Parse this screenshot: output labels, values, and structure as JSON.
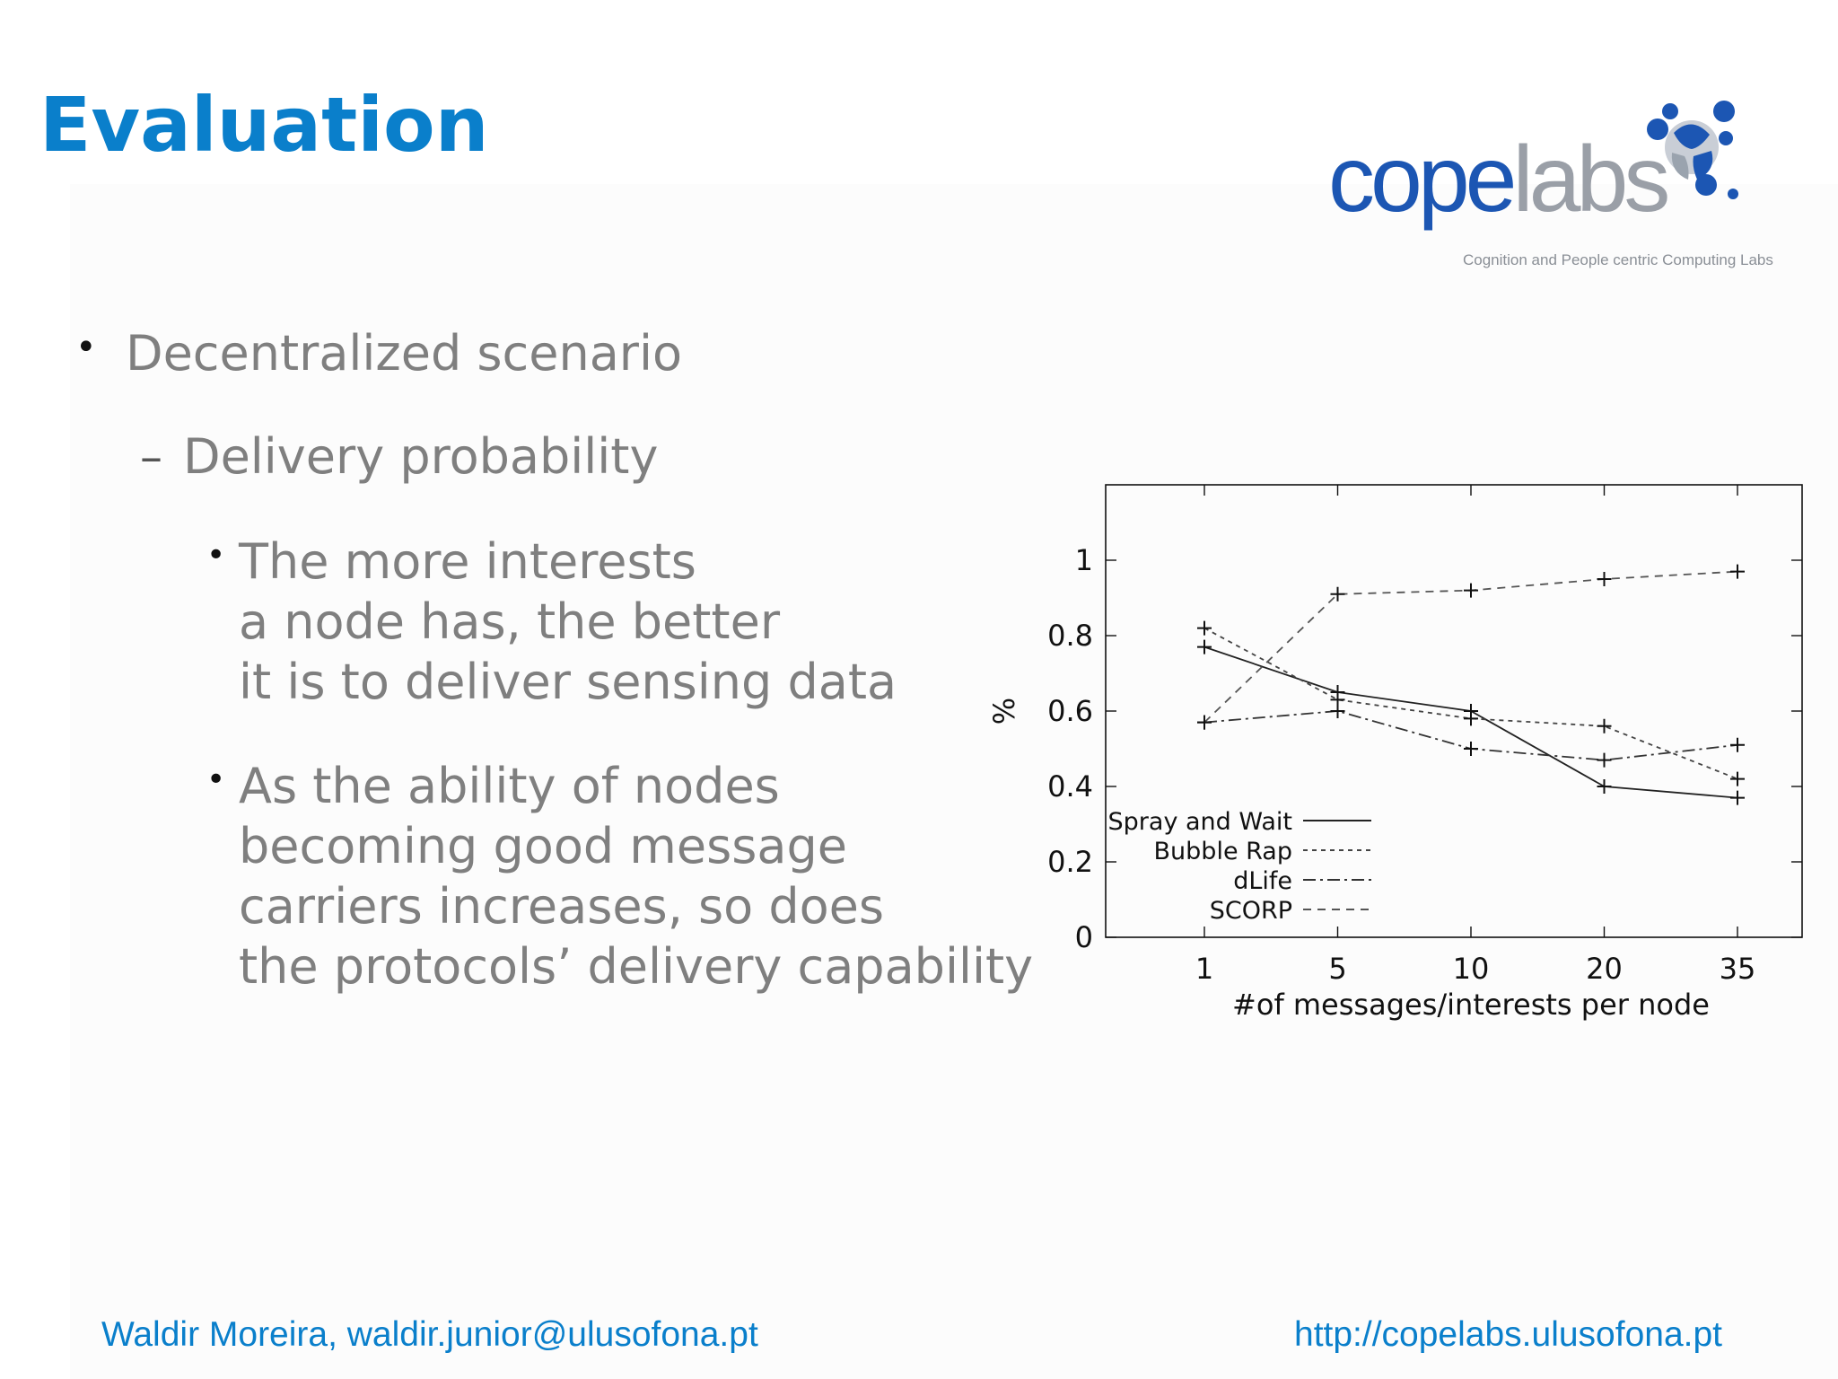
{
  "slide": {
    "title": "Evaluation",
    "logo": {
      "word_primary": "cope",
      "word_secondary": "labs",
      "tagline": "Cognition and People centric Computing Labs",
      "icon": "people-network-icon",
      "colors": {
        "primary": "#1c56b3",
        "secondary": "#9a9fa7"
      }
    },
    "bullets": {
      "level1": "Decentralized scenario",
      "level2": "Delivery probability",
      "level3": [
        {
          "lines": [
            "The more interests",
            "a node has, the better",
            "it is to deliver sensing data"
          ]
        },
        {
          "lines": [
            "As the ability of nodes",
            "becoming good message",
            "carriers increases, so does",
            "the protocols’ delivery capability"
          ]
        }
      ]
    },
    "footer": {
      "left": "Waldir Moreira, waldir.junior@ulusofona.pt",
      "right": "http://copelabs.ulusofona.pt"
    },
    "accent_color": "#0a7fcb"
  },
  "chart_data": {
    "type": "line",
    "title": "",
    "xlabel": "#of messages/interests per node",
    "ylabel": "%",
    "categories": [
      "1",
      "5",
      "10",
      "20",
      "35"
    ],
    "yticks": [
      "0",
      "0.2",
      "0.4",
      "0.6",
      "0.8",
      "1"
    ],
    "ylim": [
      0,
      1.2
    ],
    "grid": false,
    "legend_position": "bottom-left",
    "series": [
      {
        "name": "Spray and Wait",
        "values": [
          0.77,
          0.65,
          0.6,
          0.4,
          0.37
        ],
        "dash": "solid"
      },
      {
        "name": "Bubble Rap",
        "values": [
          0.82,
          0.63,
          0.58,
          0.56,
          0.42
        ],
        "dash": "dotted"
      },
      {
        "name": "dLife",
        "values": [
          0.57,
          0.6,
          0.5,
          0.47,
          0.51
        ],
        "dash": "dashdot"
      },
      {
        "name": "SCORP",
        "values": [
          0.57,
          0.91,
          0.92,
          0.95,
          0.97
        ],
        "dash": "dashed"
      }
    ]
  }
}
